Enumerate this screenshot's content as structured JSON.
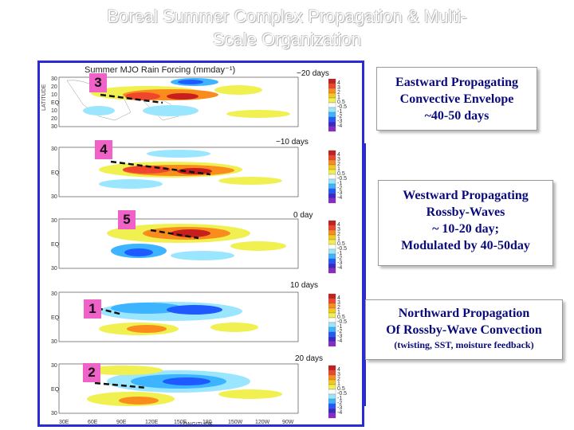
{
  "slide": {
    "title_line1": "Boreal Summer Complex Propagation & Multi-",
    "title_line2": "Scale Organization"
  },
  "figure": {
    "title": "Summer MJO Rain Forcing (mmday⁻¹)",
    "x_axis_title": "LONGITUDE",
    "y_axis_title": "LATITUDE",
    "lon_ticks": [
      "30E",
      "60E",
      "90E",
      "120E",
      "150E",
      "180",
      "150W",
      "120W",
      "90W"
    ],
    "lat_ticks": [
      "30",
      "20",
      "10",
      "EQ",
      "10",
      "20",
      "30"
    ],
    "colorbar_ticks": [
      "4",
      "3",
      "2",
      "1",
      "0.5",
      "-0.5",
      "-1",
      "-2",
      "-3",
      "-4"
    ],
    "colorbar_colors": [
      "#c81e1e",
      "#f0462d",
      "#fa8c1e",
      "#f5c81e",
      "#f0f050",
      "#ffffff",
      "#9be6ff",
      "#3cb4ff",
      "#1e5aff",
      "#3c28c8",
      "#8c28c8"
    ],
    "panels": [
      {
        "lag": "−20 days",
        "marker": "3"
      },
      {
        "lag": "−10 days",
        "marker": "4"
      },
      {
        "lag": "0 day",
        "marker": "5"
      },
      {
        "lag": "10 days",
        "marker": "1"
      },
      {
        "lag": "20 days",
        "marker": "2"
      }
    ]
  },
  "callouts": {
    "eastward": {
      "line1": "Eastward Propagating",
      "line2": "Convective Envelope",
      "line3": "~40-50 days"
    },
    "westward": {
      "line1": "Westward Propagating",
      "line2": "Rossby-Waves",
      "line3": "~ 10-20 day;",
      "line4": "Modulated by 40-50day"
    },
    "northward": {
      "line1": "Northward Propagation",
      "line2": "Of Rossby-Wave Convection",
      "line3": "(twisting, SST, moisture feedback)"
    }
  },
  "colors": {
    "frame_blue": "#2b2bd6",
    "marker_pink": "#f062c8",
    "callout_text": "#0a0a7a"
  }
}
